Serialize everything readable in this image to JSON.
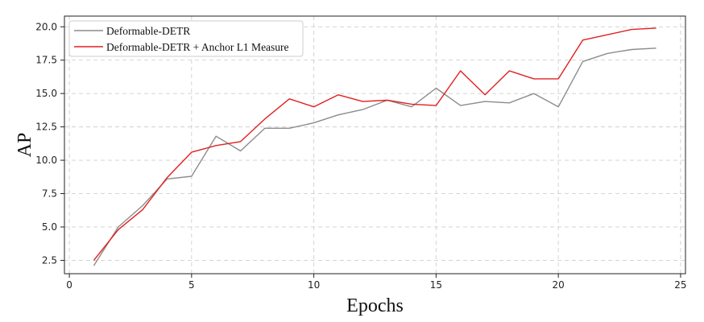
{
  "chart_data": {
    "type": "line",
    "title": "",
    "xlabel": "Epochs",
    "ylabel": "AP",
    "xlim": [
      -0.2,
      25.2
    ],
    "ylim": [
      1.5,
      20.8
    ],
    "xticks": [
      0,
      5,
      10,
      15,
      20,
      25
    ],
    "yticks": [
      2.5,
      5.0,
      7.5,
      10.0,
      12.5,
      15.0,
      17.5,
      20.0
    ],
    "grid": true,
    "legend_position": "top-left",
    "x": [
      1,
      2,
      3,
      4,
      5,
      6,
      7,
      8,
      9,
      10,
      11,
      12,
      13,
      14,
      15,
      16,
      17,
      18,
      19,
      20,
      21,
      22,
      23,
      24
    ],
    "series": [
      {
        "name": "Deformable-DETR",
        "color": "#8c8c8c",
        "values": [
          2.1,
          5.0,
          6.6,
          8.6,
          8.8,
          11.8,
          10.7,
          12.4,
          12.4,
          12.8,
          13.4,
          13.8,
          14.5,
          14.0,
          15.4,
          14.1,
          14.4,
          14.3,
          15.0,
          14.0,
          17.4,
          18.0,
          18.3,
          18.4
        ]
      },
      {
        "name": "Deformable-DETR + Anchor L1 Measure",
        "color": "#e02020",
        "values": [
          2.5,
          4.8,
          6.3,
          8.7,
          10.6,
          11.1,
          11.4,
          13.1,
          14.6,
          14.0,
          14.9,
          14.4,
          14.5,
          14.2,
          14.1,
          16.7,
          14.9,
          16.7,
          16.1,
          16.1,
          19.0,
          19.4,
          19.8,
          19.9
        ]
      }
    ]
  }
}
